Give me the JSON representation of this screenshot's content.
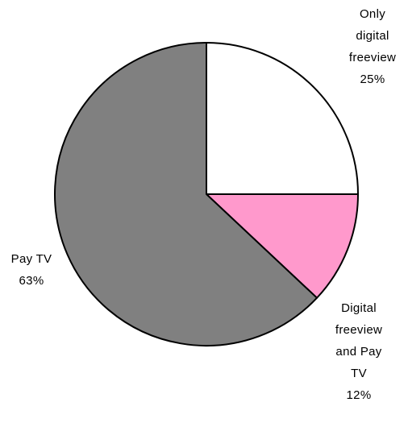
{
  "chart_data": {
    "type": "pie",
    "categories": [
      "Only digital freeview",
      "Digital freeview and Pay TV",
      "Pay TV"
    ],
    "values": [
      25,
      12,
      63
    ],
    "value_labels": [
      "25%",
      "12%",
      "63%"
    ],
    "colors": [
      "#ffffff",
      "#ff99cc",
      "#808080"
    ]
  }
}
